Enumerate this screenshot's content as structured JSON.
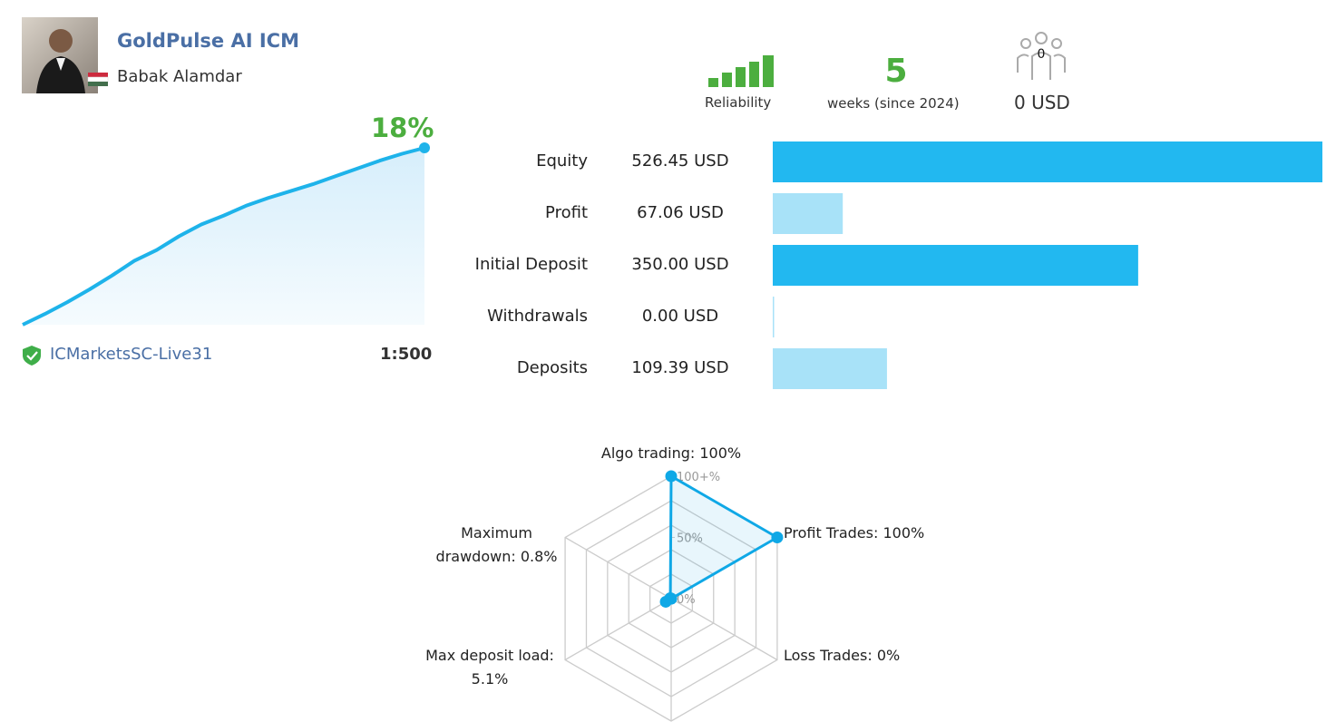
{
  "header": {
    "title": "GoldPulse AI ICM",
    "author": "Babak Alamdar"
  },
  "stats": {
    "reliability_label": "Reliability",
    "weeks": {
      "value": 5,
      "label": "weeks (since 2024)"
    },
    "subscribers": 0,
    "funds": "0 USD"
  },
  "growth": {
    "type": "line",
    "values": [
      0,
      1.1,
      2.3,
      3.6,
      5.0,
      6.5,
      7.6,
      9.0,
      10.2,
      11.1,
      12.1,
      12.9,
      13.6,
      14.3,
      15.1,
      15.9,
      16.7,
      17.4,
      18
    ],
    "value_label": "18%",
    "color": "#1eb3ea"
  },
  "account": {
    "broker": "ICMarketsSC-Live31",
    "leverage": "1:500"
  },
  "balance": {
    "type": "bar",
    "categories": [
      "Equity",
      "Profit",
      "Initial Deposit",
      "Withdrawals",
      "Deposits"
    ],
    "values": [
      526.45,
      67.06,
      350.0,
      0.0,
      109.39
    ],
    "value_labels": [
      "526.45 USD",
      "67.06 USD",
      "350.00 USD",
      "0.00 USD",
      "109.39 USD"
    ],
    "colors": [
      "#22b8f0",
      "#a8e2f8",
      "#22b8f0",
      "#a8e2f8",
      "#a8e2f8"
    ]
  },
  "radar": {
    "type": "radar",
    "categories": [
      "Algo trading:",
      "Profit Trades:",
      "Loss Trades:",
      null,
      "Max deposit load:",
      "Maximum drawdown:"
    ],
    "values": [
      100,
      100,
      0,
      0,
      5.1,
      0.8
    ],
    "value_labels": [
      "100%",
      "100%",
      "0%",
      null,
      "5.1%",
      "0.8%"
    ],
    "rlim": [
      0,
      100
    ],
    "rticks": [
      {
        "value": 0,
        "label": "0%"
      },
      {
        "value": 50,
        "label": "50%"
      },
      {
        "value": 100,
        "label": "100+%"
      }
    ],
    "grid_rings": 5,
    "color": "#0fa8e6"
  }
}
